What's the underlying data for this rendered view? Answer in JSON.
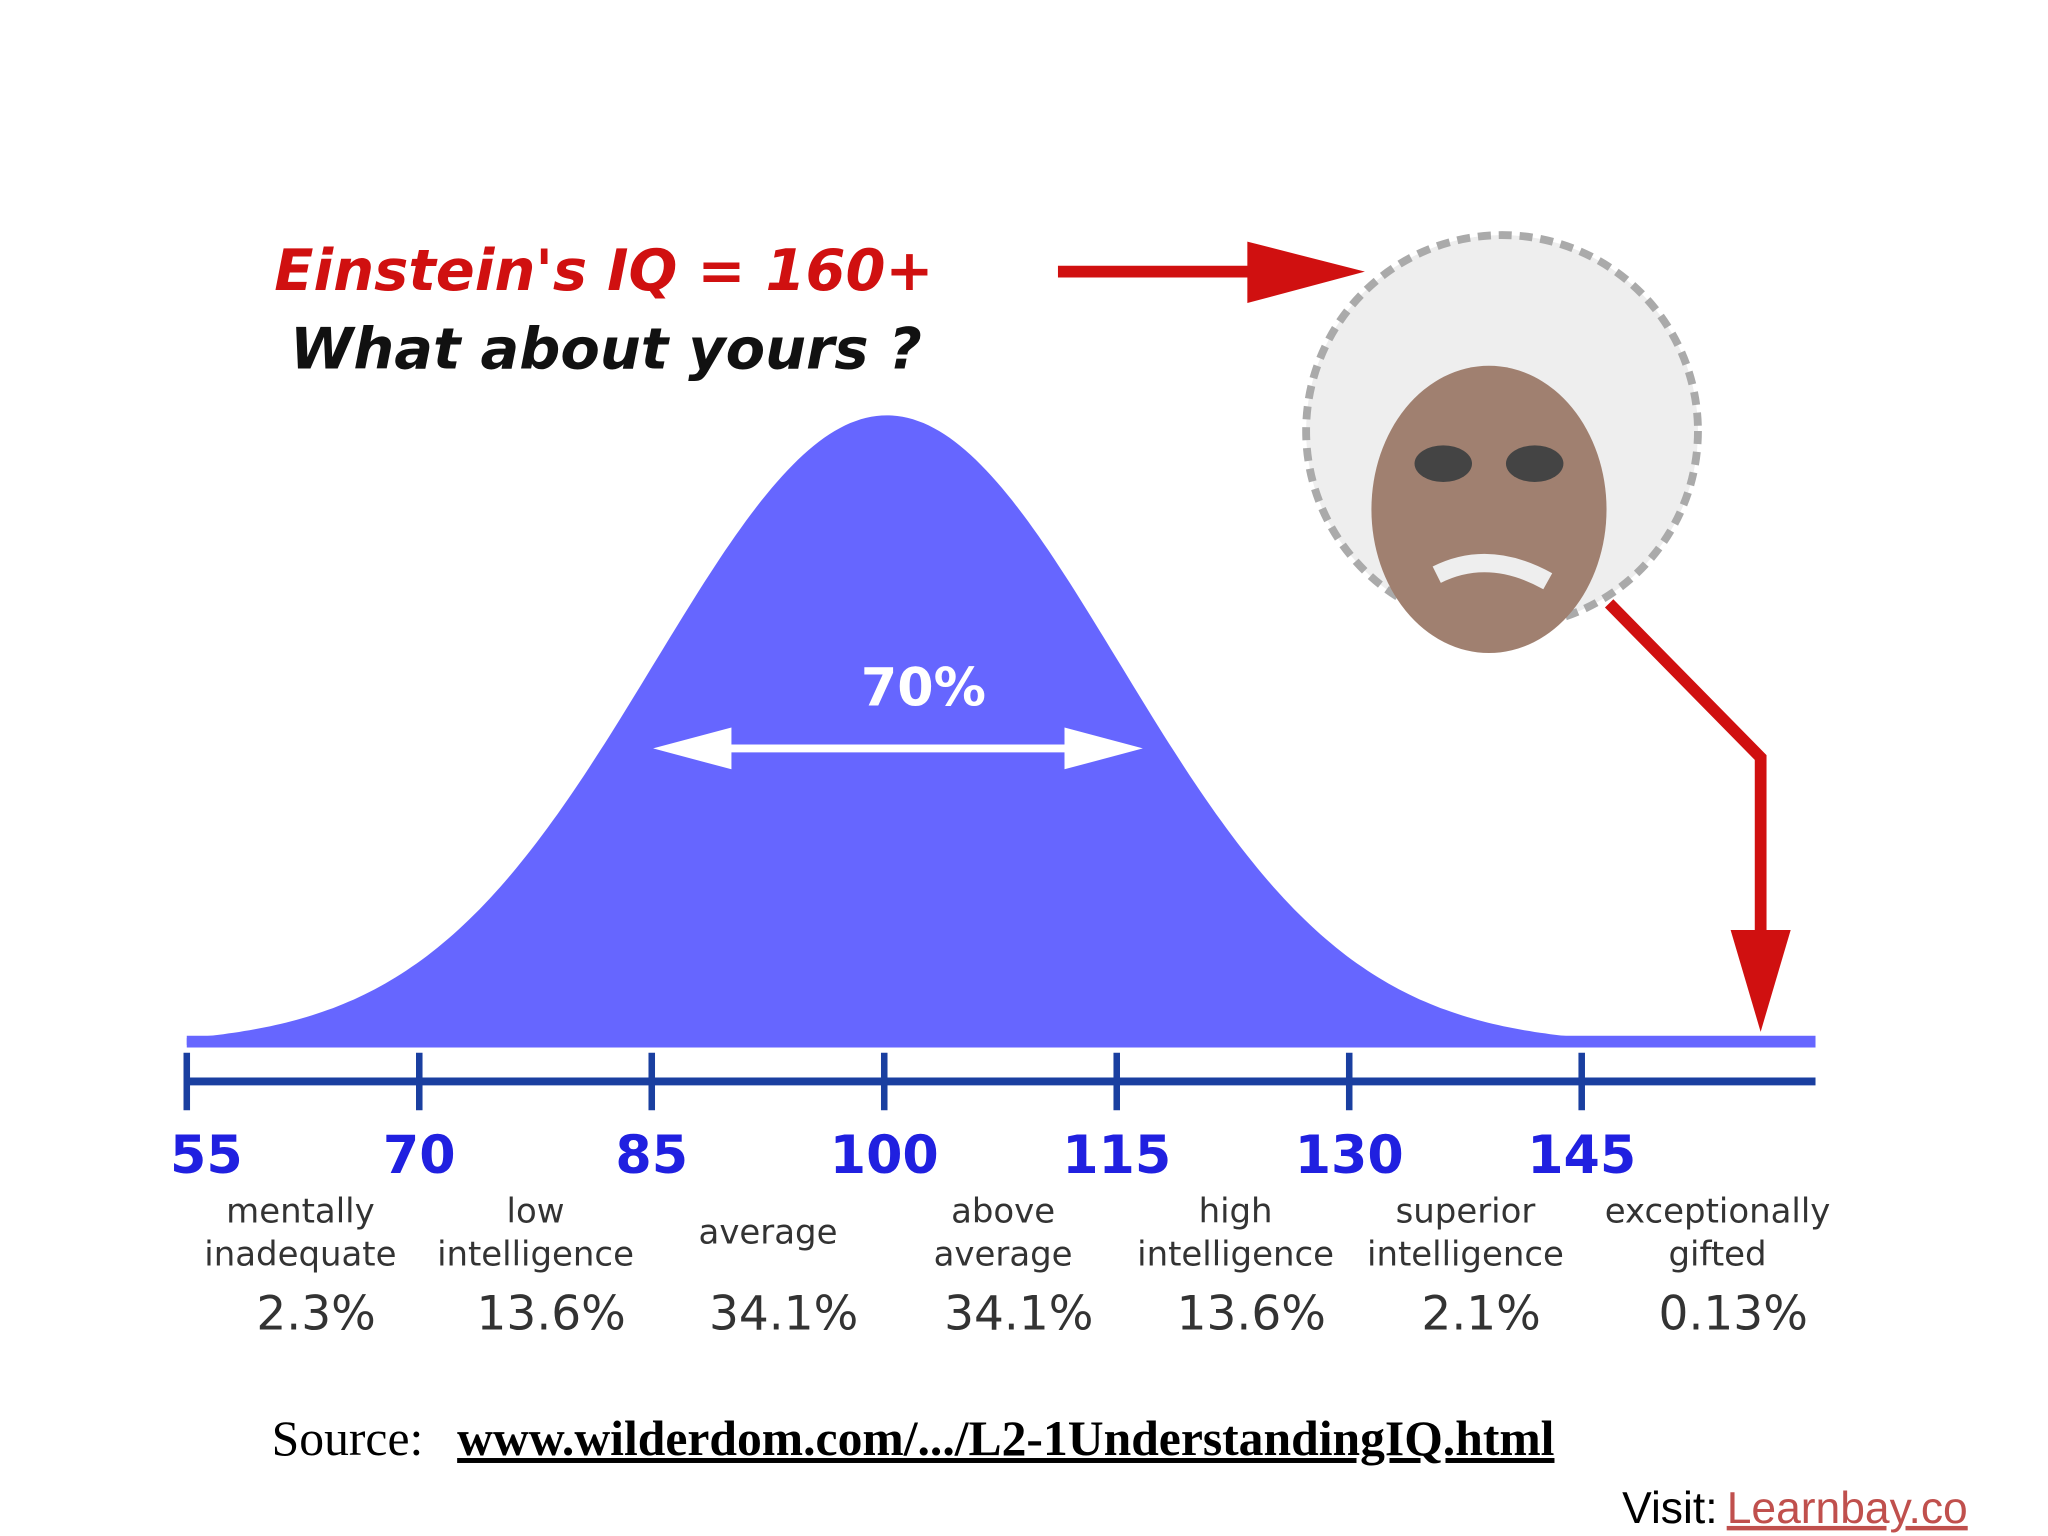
{
  "header": {
    "title": "Einstein's IQ = 160+",
    "subtitle": "What about yours ?"
  },
  "curve": {
    "center_label": "70%"
  },
  "axis": {
    "ticks": [
      "55",
      "70",
      "85",
      "100",
      "115",
      "130",
      "145"
    ]
  },
  "groups": [
    {
      "label_lines": [
        "mentally",
        "inadequate"
      ],
      "percent": "2.3%"
    },
    {
      "label_lines": [
        "low",
        "intelligence"
      ],
      "percent": "13.6%"
    },
    {
      "label_lines": [
        "average"
      ],
      "percent": "34.1%"
    },
    {
      "label_lines": [
        "above",
        "average"
      ],
      "percent": "34.1%"
    },
    {
      "label_lines": [
        "high",
        "intelligence"
      ],
      "percent": "13.6%"
    },
    {
      "label_lines": [
        "superior",
        "intelligence"
      ],
      "percent": "2.1%"
    },
    {
      "label_lines": [
        "exceptionally",
        "gifted"
      ],
      "percent": "0.13%"
    }
  ],
  "source": {
    "prefix": "Source:",
    "link": "www.wilderdom.com/.../L2-1UnderstandingIQ.html"
  },
  "footer": {
    "prefix": "Visit:",
    "link": "Learnbay.co"
  }
}
